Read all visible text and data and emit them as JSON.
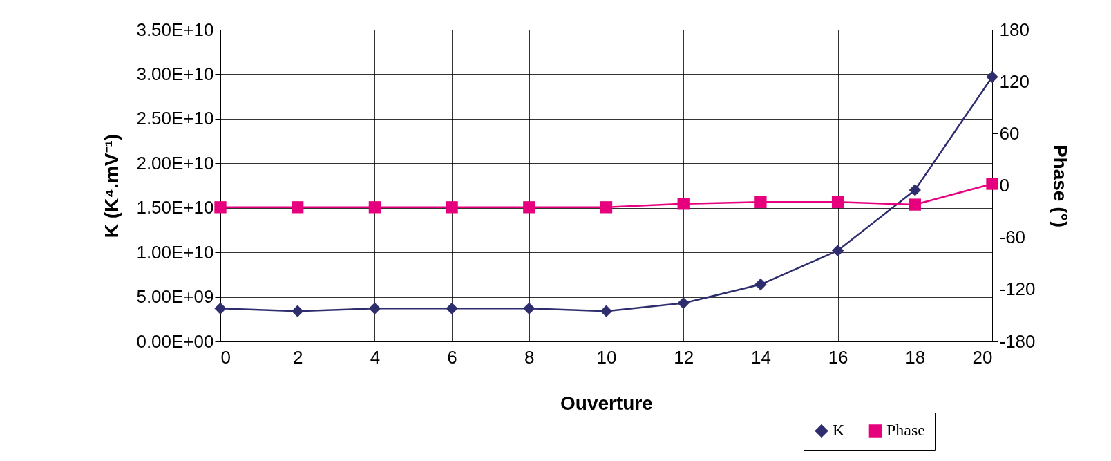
{
  "chart_data": {
    "type": "line",
    "xlabel": "Ouverture",
    "ylabel": "K (K⁴.mV⁻¹)",
    "y2label": "Phase (°)",
    "x": [
      0,
      2,
      4,
      6,
      8,
      10,
      12,
      14,
      16,
      18,
      20
    ],
    "series": [
      {
        "name": "K",
        "color": "#2e2e6e",
        "marker": "diamond",
        "values": [
          3700000000.0,
          3400000000.0,
          3700000000.0,
          3700000000.0,
          3700000000.0,
          3400000000.0,
          4300000000.0,
          6400000000.0,
          10200000000.0,
          17000000000.0,
          29700000000.0
        ]
      },
      {
        "name": "Phase",
        "color": "#e6007e",
        "marker": "square",
        "axis": "y2",
        "values": [
          -25,
          -25,
          -25,
          -25,
          -25,
          -25,
          -21,
          -19,
          -19,
          -22,
          2
        ]
      }
    ],
    "xlim": [
      0,
      20
    ],
    "xticks": [
      0,
      2,
      4,
      6,
      8,
      10,
      12,
      14,
      16,
      18,
      20
    ],
    "ylim": [
      0,
      35000000000.0
    ],
    "yticks": [
      {
        "value": 0,
        "label": "0.00E+00"
      },
      {
        "value": 5000000000.0,
        "label": "5.00E+09"
      },
      {
        "value": 10000000000.0,
        "label": "1.00E+10"
      },
      {
        "value": 15000000000.0,
        "label": "1.50E+10"
      },
      {
        "value": 20000000000.0,
        "label": "2.00E+10"
      },
      {
        "value": 25000000000.0,
        "label": "2.50E+10"
      },
      {
        "value": 30000000000.0,
        "label": "3.00E+10"
      },
      {
        "value": 35000000000.0,
        "label": "3.50E+10"
      }
    ],
    "y2lim": [
      -180,
      180
    ],
    "y2ticks": [
      -180,
      -120,
      -60,
      0,
      60,
      120,
      180
    ],
    "grid": true,
    "legend": "bottom right",
    "line_style": "solid"
  }
}
